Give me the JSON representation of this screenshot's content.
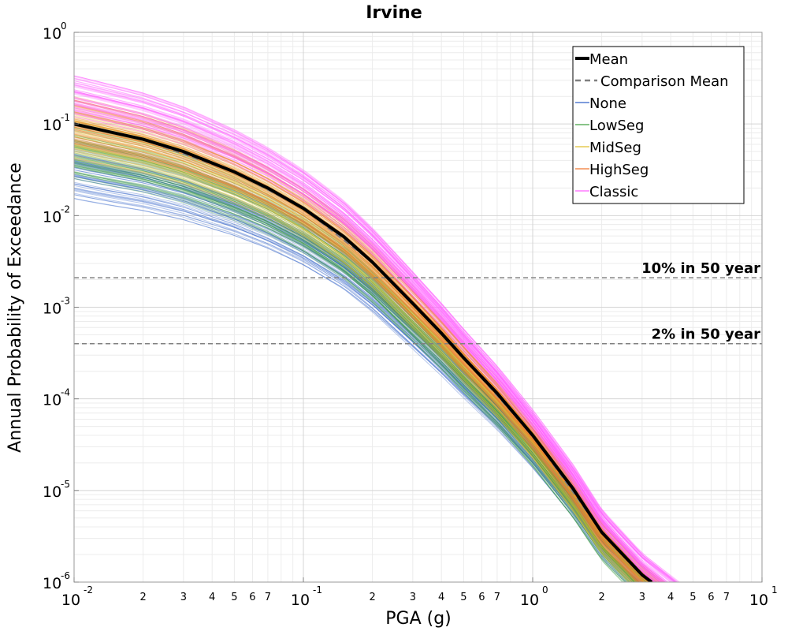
{
  "chart_data": {
    "type": "line",
    "title": "Irvine",
    "xlabel": "PGA (g)",
    "ylabel": "Annual Probability of Exceedance",
    "xscale": "log",
    "yscale": "log",
    "xlim": [
      0.01,
      10
    ],
    "ylim": [
      1e-06,
      1
    ],
    "grid": true,
    "legend_placement": "top-right",
    "x_major_ticks": [
      {
        "base": "10",
        "exp": "-2",
        "value": 0.01
      },
      {
        "base": "10",
        "exp": "-1",
        "value": 0.1
      },
      {
        "base": "10",
        "exp": "0",
        "value": 1
      },
      {
        "base": "10",
        "exp": "1",
        "value": 10
      }
    ],
    "x_minor_ticks": [
      {
        "label": "2",
        "value": 0.02
      },
      {
        "label": "3",
        "value": 0.03
      },
      {
        "label": "4",
        "value": 0.04
      },
      {
        "label": "5",
        "value": 0.05
      },
      {
        "label": "6",
        "value": 0.06
      },
      {
        "label": "7",
        "value": 0.07
      },
      {
        "label": "2",
        "value": 0.2
      },
      {
        "label": "3",
        "value": 0.3
      },
      {
        "label": "4",
        "value": 0.4
      },
      {
        "label": "5",
        "value": 0.5
      },
      {
        "label": "6",
        "value": 0.6
      },
      {
        "label": "7",
        "value": 0.7
      },
      {
        "label": "2",
        "value": 2
      },
      {
        "label": "3",
        "value": 3
      },
      {
        "label": "4",
        "value": 4
      },
      {
        "label": "5",
        "value": 5
      },
      {
        "label": "6",
        "value": 6
      },
      {
        "label": "7",
        "value": 7
      }
    ],
    "y_major_ticks": [
      {
        "base": "10",
        "exp": "0",
        "value": 1
      },
      {
        "base": "10",
        "exp": "-1",
        "value": 0.1
      },
      {
        "base": "10",
        "exp": "-2",
        "value": 0.01
      },
      {
        "base": "10",
        "exp": "-3",
        "value": 0.001
      },
      {
        "base": "10",
        "exp": "-4",
        "value": 0.0001
      },
      {
        "base": "10",
        "exp": "-5",
        "value": 1e-05
      },
      {
        "base": "10",
        "exp": "-6",
        "value": 1e-06
      }
    ],
    "reference_lines": [
      {
        "label": "10% in 50 year",
        "y": 0.0021,
        "color": "#808080"
      },
      {
        "label": "2% in 50 year",
        "y": 0.0004,
        "color": "#808080"
      }
    ],
    "mean": {
      "name": "Mean",
      "color": "#000000",
      "x": [
        0.01,
        0.02,
        0.03,
        0.05,
        0.07,
        0.1,
        0.15,
        0.2,
        0.3,
        0.4,
        0.5,
        0.7,
        1.0,
        1.5,
        2.0,
        3.0,
        3.3
      ],
      "y": [
        0.1,
        0.068,
        0.05,
        0.03,
        0.02,
        0.012,
        0.0059,
        0.0031,
        0.0011,
        0.00052,
        0.00028,
        0.000115,
        4e-05,
        1.05e-05,
        3.5e-06,
        1.2e-06,
        1e-06
      ]
    },
    "comparison_mean": {
      "name": "Comparison Mean",
      "color": "#808080",
      "x": [
        0.01,
        0.02,
        0.05,
        0.1,
        0.2,
        0.3,
        0.5,
        1.0,
        2.0,
        3.0,
        3.3
      ],
      "y": [
        0.1,
        0.068,
        0.03,
        0.012,
        0.0031,
        0.0011,
        0.00028,
        4e-05,
        3.5e-06,
        1.2e-06,
        1e-06
      ]
    },
    "series": [
      {
        "name": "None",
        "color": "#3060c8",
        "y_at_xmin": [
          0.015,
          0.06
        ],
        "x_at_ymin": [
          2.6,
          3.6
        ]
      },
      {
        "name": "LowSeg",
        "color": "#40a040",
        "y_at_xmin": [
          0.025,
          0.1
        ],
        "x_at_ymin": [
          2.5,
          3.5
        ]
      },
      {
        "name": "MidSeg",
        "color": "#e0c030",
        "y_at_xmin": [
          0.04,
          0.14
        ],
        "x_at_ymin": [
          2.6,
          3.6
        ]
      },
      {
        "name": "HighSeg",
        "color": "#f07830",
        "y_at_xmin": [
          0.06,
          0.2
        ],
        "x_at_ymin": [
          2.8,
          3.8
        ]
      },
      {
        "name": "Classic",
        "color": "#ff60ff",
        "y_at_xmin": [
          0.12,
          0.35
        ],
        "x_at_ymin": [
          3.3,
          4.4
        ]
      }
    ]
  }
}
